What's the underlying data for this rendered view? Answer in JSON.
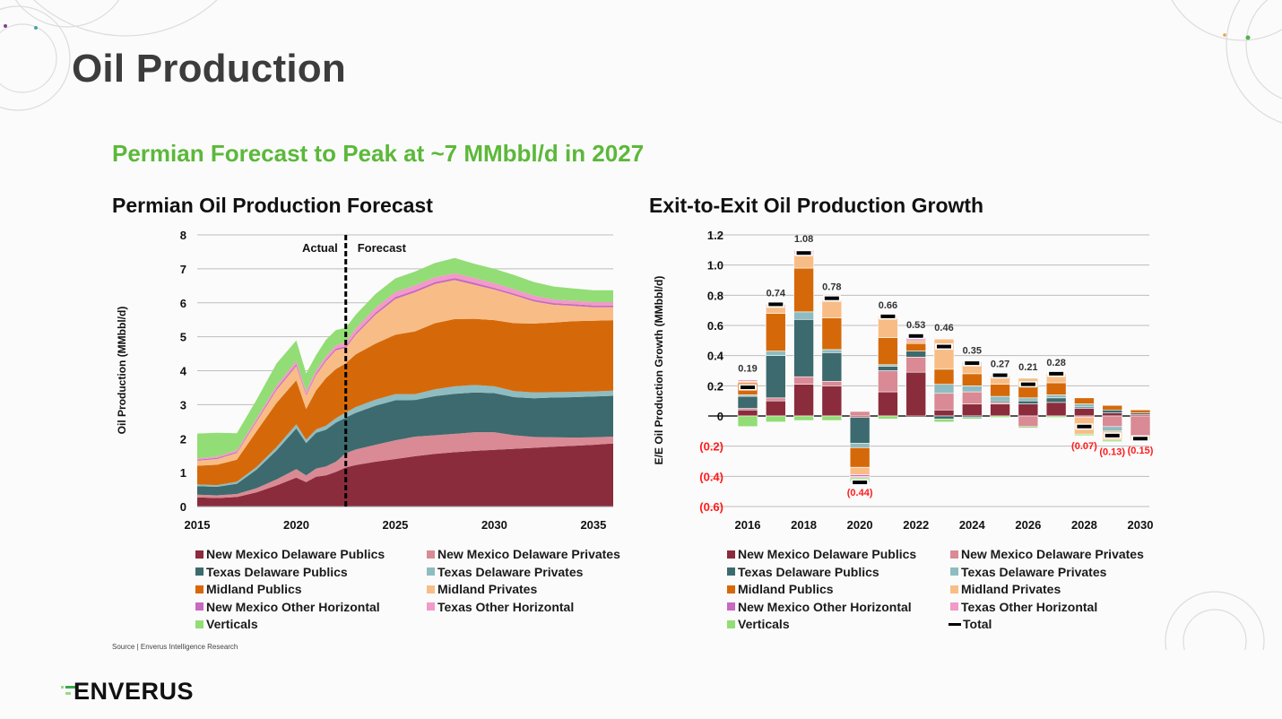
{
  "page": {
    "title": "Oil Production",
    "subtitle": "Permian Forecast to Peak at ~7 MMbbl/d in 2027",
    "source": "Source | Enverus Intelligence Research",
    "logo_text": "ENVERUS"
  },
  "colors": {
    "subtitle_green": "#5cb83a",
    "negative_label_red": "#ff1a1a",
    "nm_delaware_publics": "#8b2c3c",
    "nm_delaware_privates": "#d98a94",
    "tx_delaware_publics": "#3c6a6e",
    "tx_delaware_privates": "#8fbcc0",
    "midland_publics": "#d5690a",
    "midland_privates": "#f8bd86",
    "nm_other_horizontal": "#c86ac0",
    "tx_other_horizontal": "#f29ac8",
    "verticals": "#92dd75",
    "total": "#000000"
  },
  "series_names": [
    "New Mexico Delaware Publics",
    "New Mexico Delaware Privates",
    "Texas Delaware Publics",
    "Texas Delaware Privates",
    "Midland Publics",
    "Midland Privates",
    "New Mexico Other Horizontal",
    "Texas Other Horizontal",
    "Verticals"
  ],
  "legend_right_extra": "Total",
  "chart_data": [
    {
      "type": "area",
      "stacked": true,
      "title": "Permian Oil Production Forecast",
      "xlabel": "",
      "ylabel": "Oil Production (MMbbl/d)",
      "xlim": [
        2015,
        2036
      ],
      "ylim": [
        0,
        8
      ],
      "x_ticks": [
        "2015",
        "2020",
        "2025",
        "2030",
        "2035"
      ],
      "y_ticks": [
        "0",
        "1",
        "2",
        "3",
        "4",
        "5",
        "6",
        "7",
        "8"
      ],
      "grid": true,
      "legend": "bottom",
      "annotations": [
        {
          "text": "Actual",
          "side": "left-of-divider"
        },
        {
          "text": "Forecast",
          "side": "right-of-divider"
        }
      ],
      "divider_x": 2022.5,
      "x": [
        2015,
        2016,
        2017,
        2018,
        2019,
        2020,
        2020.5,
        2021,
        2021.5,
        2022,
        2022.5,
        2023,
        2024,
        2025,
        2026,
        2027,
        2028,
        2029,
        2030,
        2031,
        2032,
        2033,
        2034,
        2035,
        2036
      ],
      "series": [
        {
          "name": "New Mexico Delaware Publics",
          "values": [
            0.27,
            0.25,
            0.28,
            0.42,
            0.62,
            0.85,
            0.72,
            0.88,
            0.92,
            1.02,
            1.15,
            1.22,
            1.32,
            1.4,
            1.48,
            1.55,
            1.6,
            1.64,
            1.67,
            1.7,
            1.73,
            1.76,
            1.79,
            1.82,
            1.86
          ]
        },
        {
          "name": "New Mexico Delaware Privates",
          "values": [
            0.08,
            0.08,
            0.09,
            0.12,
            0.18,
            0.25,
            0.2,
            0.24,
            0.26,
            0.3,
            0.42,
            0.46,
            0.5,
            0.55,
            0.58,
            0.55,
            0.54,
            0.55,
            0.52,
            0.4,
            0.32,
            0.28,
            0.24,
            0.22,
            0.2
          ]
        },
        {
          "name": "Texas Delaware Publics",
          "values": [
            0.25,
            0.25,
            0.3,
            0.55,
            0.85,
            1.2,
            0.95,
            1.05,
            1.08,
            1.15,
            1.05,
            1.08,
            1.15,
            1.18,
            1.08,
            1.15,
            1.18,
            1.17,
            1.15,
            1.12,
            1.14,
            1.17,
            1.19,
            1.2,
            1.2
          ]
        },
        {
          "name": "Texas Delaware Privates",
          "values": [
            0.05,
            0.05,
            0.06,
            0.08,
            0.1,
            0.12,
            0.1,
            0.1,
            0.12,
            0.13,
            0.15,
            0.17,
            0.18,
            0.18,
            0.17,
            0.2,
            0.22,
            0.22,
            0.2,
            0.18,
            0.17,
            0.16,
            0.16,
            0.15,
            0.15
          ]
        },
        {
          "name": "Midland Publics",
          "values": [
            0.55,
            0.6,
            0.65,
            1.05,
            1.3,
            1.3,
            0.9,
            1.15,
            1.4,
            1.45,
            1.45,
            1.55,
            1.65,
            1.75,
            1.85,
            1.95,
            1.98,
            1.95,
            1.95,
            2.0,
            2.03,
            2.05,
            2.08,
            2.08,
            2.08
          ]
        },
        {
          "name": "Midland Privates",
          "values": [
            0.15,
            0.17,
            0.2,
            0.28,
            0.38,
            0.42,
            0.4,
            0.45,
            0.5,
            0.55,
            0.45,
            0.58,
            0.85,
            1.05,
            1.15,
            1.15,
            1.15,
            1.0,
            0.9,
            0.82,
            0.65,
            0.52,
            0.45,
            0.4,
            0.38
          ]
        },
        {
          "name": "New Mexico Other Horizontal",
          "values": [
            0.03,
            0.03,
            0.03,
            0.04,
            0.05,
            0.05,
            0.04,
            0.05,
            0.05,
            0.05,
            0.05,
            0.05,
            0.06,
            0.06,
            0.06,
            0.06,
            0.06,
            0.06,
            0.05,
            0.05,
            0.05,
            0.05,
            0.05,
            0.05,
            0.05
          ]
        },
        {
          "name": "Texas Other Horizontal",
          "values": [
            0.04,
            0.04,
            0.05,
            0.06,
            0.08,
            0.1,
            0.09,
            0.09,
            0.1,
            0.1,
            0.12,
            0.14,
            0.15,
            0.15,
            0.15,
            0.14,
            0.14,
            0.14,
            0.14,
            0.13,
            0.12,
            0.11,
            0.1,
            0.1,
            0.1
          ]
        },
        {
          "name": "Verticals",
          "values": [
            0.73,
            0.7,
            0.5,
            0.55,
            0.65,
            0.6,
            0.52,
            0.45,
            0.48,
            0.45,
            0.42,
            0.4,
            0.4,
            0.4,
            0.4,
            0.42,
            0.45,
            0.42,
            0.42,
            0.42,
            0.4,
            0.38,
            0.36,
            0.35,
            0.35
          ]
        }
      ]
    },
    {
      "type": "bar",
      "stacked": true,
      "title": "Exit-to-Exit Oil Production Growth",
      "xlabel": "",
      "ylabel": "E/E Oil Production Growth (MMbbl/d)",
      "ylim": [
        -0.6,
        1.2
      ],
      "y_ticks": [
        "(0.6)",
        "(0.4)",
        "(0.2)",
        "0",
        "0.2",
        "0.4",
        "0.6",
        "0.8",
        "1.0",
        "1.2"
      ],
      "x_ticks": [
        "2016",
        "2018",
        "2020",
        "2022",
        "2024",
        "2026",
        "2028",
        "2030"
      ],
      "grid": true,
      "legend": "bottom",
      "categories": [
        "2016",
        "2017",
        "2018",
        "2019",
        "2020",
        "2021",
        "2022",
        "2023",
        "2024",
        "2025",
        "2026",
        "2027",
        "2028",
        "2029",
        "2030"
      ],
      "series": [
        {
          "name": "New Mexico Delaware Publics",
          "values": [
            0.04,
            0.1,
            0.21,
            0.2,
            -0.01,
            0.16,
            0.29,
            0.04,
            0.08,
            0.08,
            0.08,
            0.09,
            0.05,
            0.02,
            0.01
          ]
        },
        {
          "name": "New Mexico Delaware Privates",
          "values": [
            0.01,
            0.02,
            0.05,
            0.03,
            0.03,
            0.14,
            0.1,
            0.11,
            0.08,
            0.01,
            -0.07,
            0.0,
            -0.01,
            -0.07,
            -0.13
          ]
        },
        {
          "name": "Texas Delaware Publics",
          "values": [
            0.08,
            0.28,
            0.38,
            0.19,
            -0.17,
            0.03,
            0.04,
            -0.02,
            -0.01,
            0.01,
            0.02,
            0.03,
            0.01,
            0.02,
            0.01
          ]
        },
        {
          "name": "Texas Delaware Privates",
          "values": [
            0.01,
            0.03,
            0.05,
            0.02,
            -0.03,
            0.01,
            0.0,
            0.06,
            0.04,
            0.03,
            0.02,
            0.02,
            0.02,
            -0.03,
            0.0
          ]
        },
        {
          "name": "Midland Publics",
          "values": [
            0.08,
            0.25,
            0.29,
            0.21,
            -0.13,
            0.18,
            0.05,
            0.1,
            0.08,
            0.08,
            0.08,
            0.08,
            0.04,
            0.03,
            0.02
          ]
        },
        {
          "name": "Midland Privates",
          "values": [
            0.01,
            0.04,
            0.09,
            0.11,
            -0.05,
            0.13,
            0.02,
            0.2,
            0.06,
            0.06,
            0.05,
            0.06,
            -0.11,
            -0.06,
            -0.02
          ]
        },
        {
          "name": "New Mexico Other Horizontal",
          "values": [
            0.0,
            0.0,
            0.0,
            0.0,
            -0.01,
            0.0,
            0.01,
            0.0,
            0.01,
            0.0,
            0.0,
            0.0,
            0.0,
            0.0,
            0.0
          ]
        },
        {
          "name": "Texas Other Horizontal",
          "values": [
            0.01,
            0.02,
            0.03,
            0.01,
            -0.01,
            0.01,
            0.01,
            0.0,
            0.01,
            0.0,
            0.0,
            0.0,
            0.0,
            0.0,
            0.0
          ]
        },
        {
          "name": "Verticals",
          "values": [
            -0.07,
            -0.04,
            -0.03,
            -0.03,
            -0.03,
            -0.02,
            0.0,
            -0.02,
            -0.01,
            -0.01,
            -0.01,
            -0.01,
            -0.01,
            -0.01,
            -0.01
          ]
        }
      ],
      "totals": [
        0.19,
        0.74,
        1.08,
        0.78,
        -0.44,
        0.66,
        0.53,
        0.46,
        0.35,
        0.27,
        0.21,
        0.28,
        -0.07,
        -0.13,
        -0.15
      ],
      "total_labels": [
        "0.19",
        "0.74",
        "1.08",
        "0.78",
        "(0.44)",
        "0.66",
        "0.53",
        "0.46",
        "0.35",
        "0.27",
        "0.21",
        "0.28",
        "(0.07)",
        "(0.13)",
        "(0.15)"
      ]
    }
  ]
}
